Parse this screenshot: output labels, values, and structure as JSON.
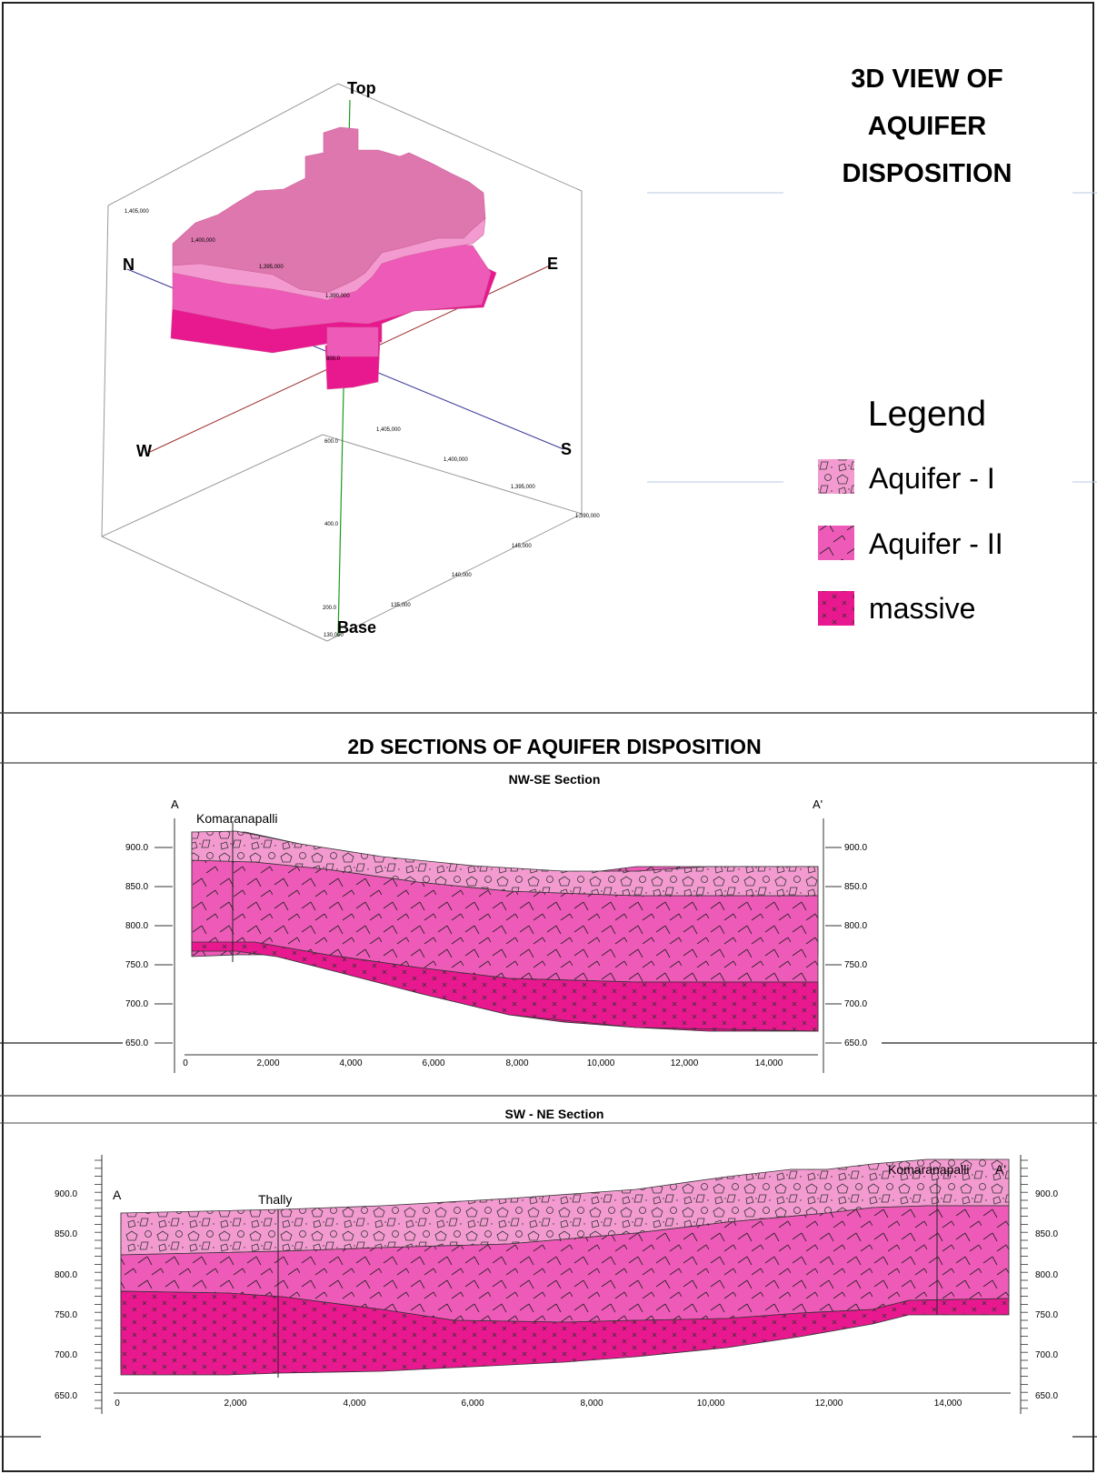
{
  "view3d": {
    "title_lines": [
      "3D VIEW OF",
      "AQUIFER",
      "DISPOSITION"
    ],
    "axis_labels": {
      "top": "Top",
      "base": "Base",
      "n": "N",
      "e": "E",
      "w": "W",
      "s": "S"
    },
    "tick_labels_left": [
      "1,405,000",
      "1,400,000",
      "1,395,000",
      "1,390,000"
    ],
    "tick_labels_right": [
      "1,405,000",
      "1,400,000",
      "1,395,000",
      "1,390,000"
    ],
    "tick_labels_bottom": [
      "145,000",
      "140,000",
      "135,000",
      "130,000"
    ],
    "tick_labels_vertical": [
      "800.0",
      "600.0",
      "400.0",
      "200.0"
    ]
  },
  "legend": {
    "title": "Legend",
    "items": [
      {
        "label": "Aquifer - I",
        "pattern": "pentagons",
        "color": "#f39bd0"
      },
      {
        "label": "Aquifer - II",
        "pattern": "slash",
        "color": "#ee5ab8"
      },
      {
        "label": "massive",
        "pattern": "cross",
        "color": "#e8188f"
      }
    ]
  },
  "sections_title": "2D SECTIONS OF AQUIFER DISPOSITION",
  "colors": {
    "aquifer1": "#f39bd0",
    "aquifer2": "#ee5ab8",
    "massive": "#e8188f"
  },
  "section1": {
    "title": "NW-SE Section",
    "start_label": "A",
    "end_label": "A'",
    "well_label": "Komaranapalli",
    "y_ticks": [
      "900.0",
      "850.0",
      "800.0",
      "750.0",
      "700.0",
      "650.0"
    ],
    "x_ticks": [
      "0",
      "2,000",
      "4,000",
      "6,000",
      "8,000",
      "10,000",
      "12,000",
      "14,000"
    ]
  },
  "section2": {
    "title": "SW - NE Section",
    "start_label": "A",
    "end_label": "A'",
    "well_labels": [
      "Thally",
      "Komaranapalli"
    ],
    "y_ticks": [
      "900.0",
      "850.0",
      "800.0",
      "750.0",
      "700.0",
      "650.0"
    ],
    "x_ticks": [
      "0",
      "2,000",
      "4,000",
      "6,000",
      "8,000",
      "10,000",
      "12,000",
      "14,000"
    ]
  }
}
